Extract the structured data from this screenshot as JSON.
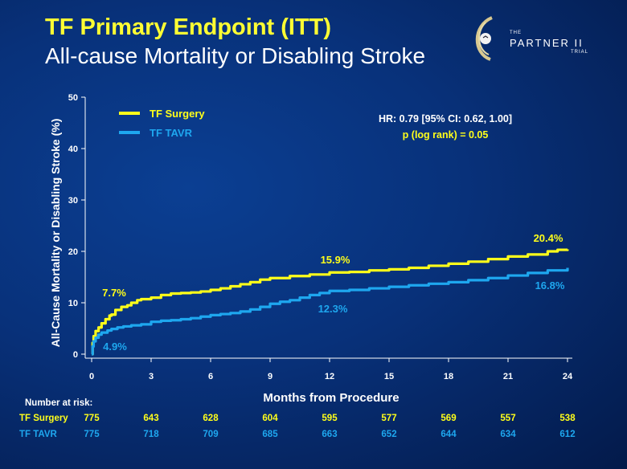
{
  "header": {
    "title": "TF Primary Endpoint (ITT)",
    "subtitle": "All-cause Mortality or Disabling Stroke"
  },
  "logo": {
    "the": "THE",
    "name": "PARTNER II",
    "trial": "TRIAL"
  },
  "colors": {
    "surgery": "#ffff1a",
    "tavr": "#1ea7ef",
    "axis": "#ffffff"
  },
  "chart_data": {
    "type": "line",
    "title": "",
    "xlabel": "Months from Procedure",
    "ylabel": "All-Cause Mortality or Disabling Stroke (%)",
    "xlim": [
      0,
      24
    ],
    "ylim": [
      0,
      50
    ],
    "xticks": [
      0,
      3,
      6,
      9,
      12,
      15,
      18,
      21,
      24
    ],
    "yticks": [
      0,
      10,
      20,
      30,
      40,
      50
    ],
    "grid": false,
    "legend": "top-left",
    "stats": [
      "HR: 0.79 [95% CI: 0.62, 1.00]",
      "p (log rank) = 0.05"
    ],
    "series": [
      {
        "name": "TF Surgery",
        "color": "#ffff1a",
        "x": [
          0,
          0.05,
          0.1,
          0.2,
          0.35,
          0.5,
          0.7,
          0.9,
          1.0,
          1.2,
          1.5,
          1.8,
          2.0,
          2.3,
          2.5,
          3.0,
          3.5,
          4.0,
          4.5,
          5.0,
          5.5,
          6.0,
          6.5,
          7.0,
          7.5,
          8.0,
          8.5,
          9.0,
          10.0,
          11.0,
          12.0,
          13.0,
          14.0,
          15.0,
          16.0,
          17.0,
          18.0,
          19.0,
          20.0,
          21.0,
          22.0,
          23.0,
          23.5,
          24.0
        ],
        "y": [
          0,
          2.2,
          3.5,
          4.5,
          5.2,
          6.0,
          6.8,
          7.5,
          7.7,
          8.6,
          9.2,
          9.5,
          10.0,
          10.5,
          10.7,
          11.0,
          11.5,
          11.8,
          11.9,
          12.0,
          12.2,
          12.5,
          12.8,
          13.2,
          13.6,
          14.0,
          14.5,
          14.8,
          15.2,
          15.5,
          15.9,
          16.0,
          16.3,
          16.5,
          16.8,
          17.2,
          17.6,
          18.0,
          18.5,
          19.0,
          19.4,
          20.0,
          20.3,
          20.4
        ]
      },
      {
        "name": "TF TAVR",
        "color": "#1ea7ef",
        "x": [
          0,
          0.05,
          0.1,
          0.2,
          0.35,
          0.5,
          0.8,
          1.0,
          1.3,
          1.6,
          2.0,
          2.5,
          3.0,
          3.5,
          4.0,
          4.5,
          5.0,
          5.5,
          6.0,
          6.5,
          7.0,
          7.5,
          8.0,
          8.5,
          9.0,
          9.5,
          10.0,
          10.5,
          11.0,
          11.5,
          12.0,
          13.0,
          14.0,
          15.0,
          16.0,
          17.0,
          18.0,
          19.0,
          20.0,
          21.0,
          22.0,
          23.0,
          24.0
        ],
        "y": [
          0,
          1.5,
          2.5,
          3.2,
          3.8,
          4.2,
          4.6,
          4.9,
          5.2,
          5.4,
          5.6,
          5.8,
          6.3,
          6.5,
          6.6,
          6.8,
          7.0,
          7.3,
          7.6,
          7.8,
          8.0,
          8.3,
          8.7,
          9.2,
          9.8,
          10.2,
          10.5,
          11.0,
          11.5,
          11.9,
          12.3,
          12.5,
          12.8,
          13.1,
          13.4,
          13.7,
          14.0,
          14.4,
          14.8,
          15.3,
          15.8,
          16.3,
          16.8
        ]
      }
    ],
    "annotations": [
      {
        "text": "7.7%",
        "x": 1,
        "series": "TF Surgery"
      },
      {
        "text": "15.9%",
        "x": 12,
        "series": "TF Surgery"
      },
      {
        "text": "20.4%",
        "x": 24,
        "series": "TF Surgery"
      },
      {
        "text": "4.9%",
        "x": 1,
        "series": "TF TAVR"
      },
      {
        "text": "12.3%",
        "x": 12,
        "series": "TF TAVR"
      },
      {
        "text": "16.8%",
        "x": 24,
        "series": "TF TAVR"
      }
    ]
  },
  "risk_table": {
    "title": "Number at risk:",
    "rows": [
      {
        "label": "TF Surgery",
        "values": [
          "775",
          "643",
          "628",
          "604",
          "595",
          "577",
          "569",
          "557",
          "538"
        ]
      },
      {
        "label": "TF TAVR",
        "values": [
          "775",
          "718",
          "709",
          "685",
          "663",
          "652",
          "644",
          "634",
          "612"
        ]
      }
    ]
  }
}
